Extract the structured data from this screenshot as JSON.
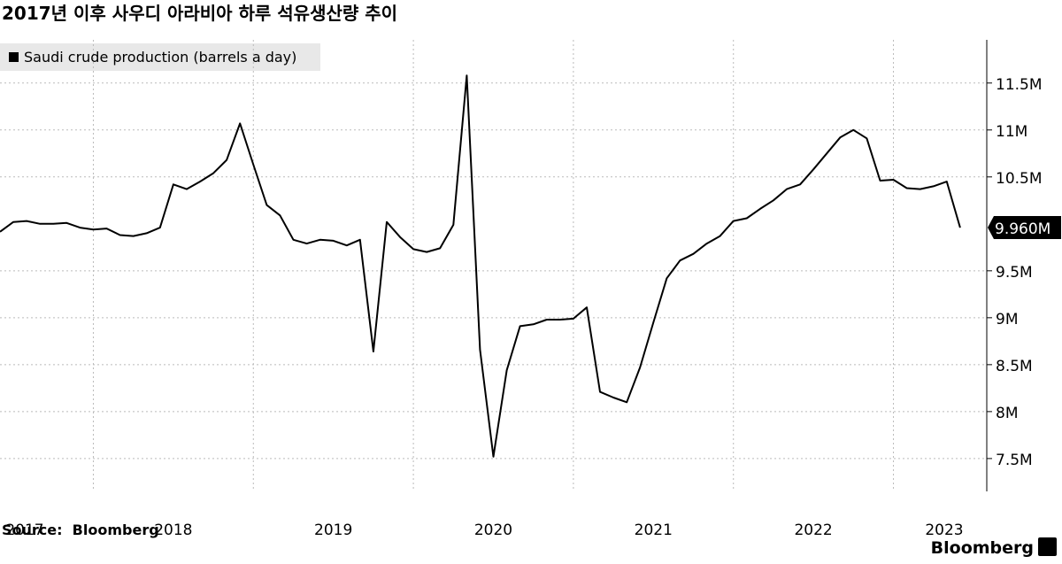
{
  "chart_data": {
    "type": "line",
    "title": "2017년 이후 사우디 아라비아 하루 석유생산량 추이",
    "source": "Source:  Bloomberg",
    "brand": "Bloomberg",
    "x": [
      "2017-05",
      "2017-06",
      "2017-07",
      "2017-08",
      "2017-09",
      "2017-10",
      "2017-11",
      "2017-12",
      "2018-01",
      "2018-02",
      "2018-03",
      "2018-04",
      "2018-05",
      "2018-06",
      "2018-07",
      "2018-08",
      "2018-09",
      "2018-10",
      "2018-11",
      "2018-12",
      "2019-01",
      "2019-02",
      "2019-03",
      "2019-04",
      "2019-05",
      "2019-06",
      "2019-07",
      "2019-08",
      "2019-09",
      "2019-10",
      "2019-11",
      "2019-12",
      "2020-01",
      "2020-02",
      "2020-03",
      "2020-04",
      "2020-05",
      "2020-06",
      "2020-07",
      "2020-08",
      "2020-09",
      "2020-10",
      "2020-11",
      "2020-12",
      "2021-01",
      "2021-02",
      "2021-03",
      "2021-04",
      "2021-05",
      "2021-06",
      "2021-07",
      "2021-08",
      "2021-09",
      "2021-10",
      "2021-11",
      "2021-12",
      "2022-01",
      "2022-02",
      "2022-03",
      "2022-04",
      "2022-05",
      "2022-06",
      "2022-07",
      "2022-08",
      "2022-09",
      "2022-10",
      "2022-11",
      "2022-12",
      "2023-01",
      "2023-02",
      "2023-03",
      "2023-04",
      "2023-05"
    ],
    "series": [
      {
        "name": "Saudi crude production (barrels a day)",
        "color": "#000000",
        "values": [
          9915000,
          10020000,
          10030000,
          10000000,
          10000000,
          10010000,
          9960000,
          9940000,
          9950000,
          9880000,
          9870000,
          9900000,
          9960000,
          10420000,
          10370000,
          10450000,
          10540000,
          10680000,
          11070000,
          10630000,
          10200000,
          10090000,
          9830000,
          9790000,
          9830000,
          9820000,
          9770000,
          9830000,
          8640000,
          10020000,
          9860000,
          9730000,
          9700000,
          9740000,
          9990000,
          11580000,
          8660000,
          7520000,
          8440000,
          8910000,
          8930000,
          8980000,
          8980000,
          8990000,
          9110000,
          8210000,
          8150000,
          8100000,
          8470000,
          8950000,
          9420000,
          9610000,
          9680000,
          9790000,
          9870000,
          10030000,
          10060000,
          10160000,
          10250000,
          10370000,
          10420000,
          10580000,
          10750000,
          10920000,
          11000000,
          10910000,
          10460000,
          10470000,
          10380000,
          10370000,
          10400000,
          10450000,
          9960000
        ],
        "value_labels": [
          null,
          null,
          null,
          null,
          null,
          null,
          null,
          null,
          null,
          null,
          null,
          null,
          null,
          null,
          null,
          null,
          null,
          null,
          null,
          null,
          null,
          null,
          null,
          null,
          null,
          null,
          null,
          null,
          null,
          null,
          null,
          null,
          null,
          null,
          null,
          null,
          null,
          null,
          null,
          null,
          null,
          null,
          null,
          null,
          null,
          null,
          null,
          null,
          null,
          null,
          null,
          null,
          null,
          null,
          null,
          null,
          null,
          null,
          null,
          null,
          null,
          null,
          null,
          null,
          null,
          null,
          null,
          null,
          null,
          null,
          null,
          null,
          "9.960M"
        ]
      }
    ],
    "xlim": [
      "2017-05",
      "2023-07"
    ],
    "xticks": [
      "2017",
      "2018",
      "2019",
      "2020",
      "2021",
      "2022",
      "2023"
    ],
    "ylim": [
      7150000,
      11960000
    ],
    "yticks": [
      {
        "value": 7500000,
        "label": "7.5M"
      },
      {
        "value": 8000000,
        "label": "8M"
      },
      {
        "value": 8500000,
        "label": "8.5M"
      },
      {
        "value": 9000000,
        "label": "9M"
      },
      {
        "value": 9500000,
        "label": "9.5M"
      },
      {
        "value": 10500000,
        "label": "10.5M"
      },
      {
        "value": 11000000,
        "label": "11M"
      },
      {
        "value": 11500000,
        "label": "11.5M"
      }
    ],
    "y_axis_side": "right",
    "grid": true
  }
}
